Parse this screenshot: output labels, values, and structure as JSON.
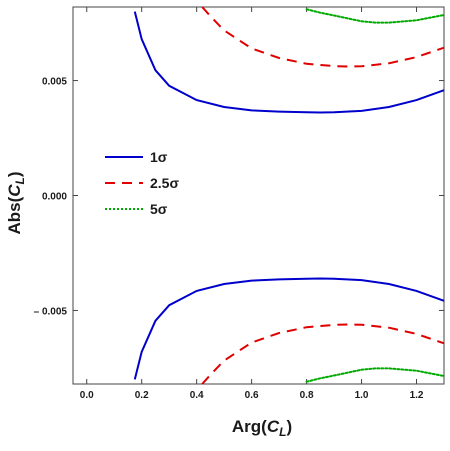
{
  "chart_data": {
    "type": "line",
    "xlabel_main": "Arg(",
    "xlabel_var": "C",
    "xlabel_sub": "L",
    "xlabel_close": ")",
    "ylabel_main": "Abs(",
    "ylabel_var": "C",
    "ylabel_sub": "L",
    "ylabel_close": ")",
    "xlim": [
      -0.05,
      1.3
    ],
    "ylim": [
      -0.0082,
      0.0082
    ],
    "xticks": [
      0.0,
      0.2,
      0.4,
      0.6,
      0.8,
      1.0,
      1.2
    ],
    "xtick_labels": [
      "0.0",
      "0.2",
      "0.4",
      "0.6",
      "0.8",
      "1.0",
      "1.2"
    ],
    "yticks": [
      0.005,
      0.0,
      -0.005
    ],
    "ytick_labels": [
      "0.005",
      "0.000",
      "– 0.005"
    ],
    "grid": false,
    "legend_position": "center-left",
    "series": [
      {
        "name": "1σ",
        "color": "#0000cc",
        "dash": "solid",
        "upper": [
          [
            0.175,
            0.008
          ],
          [
            0.2,
            0.0068
          ],
          [
            0.25,
            0.00545
          ],
          [
            0.3,
            0.00477
          ],
          [
            0.4,
            0.00415
          ],
          [
            0.5,
            0.00385
          ],
          [
            0.6,
            0.0037
          ],
          [
            0.7,
            0.00365
          ],
          [
            0.8,
            0.00362
          ],
          [
            0.85,
            0.00361
          ],
          [
            0.9,
            0.00362
          ],
          [
            1.0,
            0.00368
          ],
          [
            1.1,
            0.00385
          ],
          [
            1.2,
            0.00415
          ],
          [
            1.3,
            0.00458
          ]
        ],
        "lower": [
          [
            0.175,
            -0.008
          ],
          [
            0.2,
            -0.0068
          ],
          [
            0.25,
            -0.00545
          ],
          [
            0.3,
            -0.00477
          ],
          [
            0.4,
            -0.00415
          ],
          [
            0.5,
            -0.00385
          ],
          [
            0.6,
            -0.0037
          ],
          [
            0.7,
            -0.00365
          ],
          [
            0.8,
            -0.00362
          ],
          [
            0.85,
            -0.00361
          ],
          [
            0.9,
            -0.00362
          ],
          [
            1.0,
            -0.00368
          ],
          [
            1.1,
            -0.00385
          ],
          [
            1.2,
            -0.00415
          ],
          [
            1.3,
            -0.00458
          ]
        ]
      },
      {
        "name": "2.5σ",
        "color": "#e00000",
        "dash": "dashed",
        "upper": [
          [
            0.42,
            0.0082
          ],
          [
            0.45,
            0.0078
          ],
          [
            0.5,
            0.00718
          ],
          [
            0.6,
            0.0064
          ],
          [
            0.7,
            0.00598
          ],
          [
            0.8,
            0.00573
          ],
          [
            0.9,
            0.00563
          ],
          [
            0.95,
            0.00561
          ],
          [
            1.0,
            0.00562
          ],
          [
            1.1,
            0.00575
          ],
          [
            1.2,
            0.00602
          ],
          [
            1.3,
            0.00643
          ]
        ],
        "lower": [
          [
            0.42,
            -0.0082
          ],
          [
            0.45,
            -0.0078
          ],
          [
            0.5,
            -0.00718
          ],
          [
            0.6,
            -0.0064
          ],
          [
            0.7,
            -0.00598
          ],
          [
            0.8,
            -0.00573
          ],
          [
            0.9,
            -0.00563
          ],
          [
            0.95,
            -0.00561
          ],
          [
            1.0,
            -0.00562
          ],
          [
            1.1,
            -0.00575
          ],
          [
            1.2,
            -0.00602
          ],
          [
            1.3,
            -0.00643
          ]
        ]
      },
      {
        "name": "5σ",
        "color": "#00aa00",
        "dash": "dotted",
        "upper": [
          [
            0.8,
            0.0081
          ],
          [
            0.85,
            0.00795
          ],
          [
            0.9,
            0.00783
          ],
          [
            1.0,
            0.00758
          ],
          [
            1.05,
            0.00752
          ],
          [
            1.1,
            0.00752
          ],
          [
            1.2,
            0.00762
          ],
          [
            1.3,
            0.00785
          ]
        ],
        "lower": [
          [
            0.8,
            -0.0081
          ],
          [
            0.85,
            -0.00795
          ],
          [
            0.9,
            -0.00783
          ],
          [
            1.0,
            -0.00758
          ],
          [
            1.05,
            -0.00752
          ],
          [
            1.1,
            -0.00752
          ],
          [
            1.2,
            -0.00762
          ],
          [
            1.3,
            -0.00785
          ]
        ]
      }
    ],
    "legend": [
      {
        "symbol": "σ",
        "prefix": "1"
      },
      {
        "symbol": "σ",
        "prefix": "2.5"
      },
      {
        "symbol": "σ",
        "prefix": "5"
      }
    ]
  }
}
